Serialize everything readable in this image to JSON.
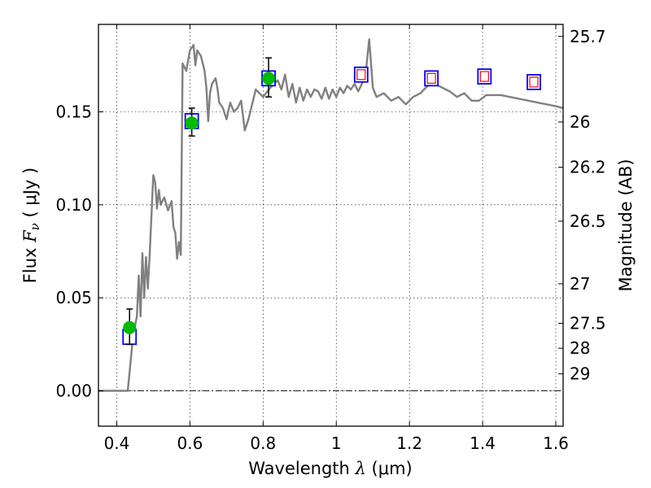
{
  "chart_data": {
    "type": "scatter",
    "xlabel": {
      "prefix": "Wavelength  ",
      "var": "λ",
      "unit": "(μm)"
    },
    "ylabel": {
      "prefix": "Flux  ",
      "var": "F",
      "sub": "ν",
      "unit": "( μJy )"
    },
    "y2label": "Magnitude (AB)",
    "xlim": [
      0.35,
      1.62
    ],
    "ylim": [
      -0.019,
      0.197
    ],
    "grid": true,
    "x_ticks": [
      {
        "value": 0.4,
        "label": "0.4"
      },
      {
        "value": 0.6,
        "label": "0.6"
      },
      {
        "value": 0.8,
        "label": "0.8"
      },
      {
        "value": 1.0,
        "label": "1"
      },
      {
        "value": 1.2,
        "label": "1.2"
      },
      {
        "value": 1.4,
        "label": "1.4"
      },
      {
        "value": 1.6,
        "label": "1.6"
      }
    ],
    "y_ticks": [
      {
        "value": 0.0,
        "label": "0.00"
      },
      {
        "value": 0.05,
        "label": "0.05"
      },
      {
        "value": 0.1,
        "label": "0.10"
      },
      {
        "value": 0.15,
        "label": "0.15"
      }
    ],
    "y2_ticks": [
      {
        "mag": 25.7,
        "label": "25.7"
      },
      {
        "mag": 26.0,
        "label": "26"
      },
      {
        "mag": 26.2,
        "label": "26.2"
      },
      {
        "mag": 26.5,
        "label": "26.5"
      },
      {
        "mag": 27.0,
        "label": "27"
      },
      {
        "mag": 27.5,
        "label": "27.5"
      },
      {
        "mag": 28.0,
        "label": "28"
      },
      {
        "mag": 29.0,
        "label": "29"
      }
    ],
    "series": [
      {
        "kind": "line",
        "color": "#808080",
        "points": [
          [
            0.35,
            0.0
          ],
          [
            0.43,
            0.0
          ],
          [
            0.445,
            0.03
          ],
          [
            0.455,
            0.04
          ],
          [
            0.46,
            0.062
          ],
          [
            0.465,
            0.04
          ],
          [
            0.47,
            0.074
          ],
          [
            0.475,
            0.05
          ],
          [
            0.48,
            0.072
          ],
          [
            0.485,
            0.055
          ],
          [
            0.49,
            0.073
          ],
          [
            0.495,
            0.095
          ],
          [
            0.5,
            0.116
          ],
          [
            0.505,
            0.112
          ],
          [
            0.51,
            0.098
          ],
          [
            0.515,
            0.108
          ],
          [
            0.52,
            0.1
          ],
          [
            0.53,
            0.104
          ],
          [
            0.54,
            0.097
          ],
          [
            0.55,
            0.102
          ],
          [
            0.555,
            0.088
          ],
          [
            0.56,
            0.085
          ],
          [
            0.565,
            0.071
          ],
          [
            0.57,
            0.08
          ],
          [
            0.575,
            0.073
          ],
          [
            0.58,
            0.176
          ],
          [
            0.59,
            0.172
          ],
          [
            0.6,
            0.183
          ],
          [
            0.61,
            0.186
          ],
          [
            0.615,
            0.175
          ],
          [
            0.62,
            0.183
          ],
          [
            0.63,
            0.18
          ],
          [
            0.64,
            0.172
          ],
          [
            0.645,
            0.163
          ],
          [
            0.65,
            0.145
          ],
          [
            0.655,
            0.16
          ],
          [
            0.66,
            0.165
          ],
          [
            0.67,
            0.168
          ],
          [
            0.675,
            0.163
          ],
          [
            0.68,
            0.155
          ],
          [
            0.69,
            0.152
          ],
          [
            0.7,
            0.146
          ],
          [
            0.71,
            0.155
          ],
          [
            0.72,
            0.15
          ],
          [
            0.73,
            0.152
          ],
          [
            0.74,
            0.156
          ],
          [
            0.75,
            0.14
          ],
          [
            0.76,
            0.146
          ],
          [
            0.78,
            0.162
          ],
          [
            0.8,
            0.158
          ],
          [
            0.82,
            0.163
          ],
          [
            0.84,
            0.167
          ],
          [
            0.85,
            0.162
          ],
          [
            0.86,
            0.17
          ],
          [
            0.87,
            0.158
          ],
          [
            0.88,
            0.165
          ],
          [
            0.89,
            0.155
          ],
          [
            0.9,
            0.163
          ],
          [
            0.91,
            0.156
          ],
          [
            0.92,
            0.162
          ],
          [
            0.93,
            0.158
          ],
          [
            0.94,
            0.162
          ],
          [
            0.95,
            0.161
          ],
          [
            0.96,
            0.157
          ],
          [
            0.97,
            0.163
          ],
          [
            0.98,
            0.157
          ],
          [
            0.99,
            0.162
          ],
          [
            1.0,
            0.158
          ],
          [
            1.01,
            0.163
          ],
          [
            1.02,
            0.16
          ],
          [
            1.03,
            0.164
          ],
          [
            1.04,
            0.162
          ],
          [
            1.05,
            0.165
          ],
          [
            1.06,
            0.161
          ],
          [
            1.07,
            0.165
          ],
          [
            1.08,
            0.17
          ],
          [
            1.09,
            0.189
          ],
          [
            1.1,
            0.163
          ],
          [
            1.11,
            0.158
          ],
          [
            1.13,
            0.16
          ],
          [
            1.15,
            0.156
          ],
          [
            1.17,
            0.158
          ],
          [
            1.19,
            0.154
          ],
          [
            1.21,
            0.158
          ],
          [
            1.23,
            0.16
          ],
          [
            1.25,
            0.164
          ],
          [
            1.27,
            0.165
          ],
          [
            1.29,
            0.163
          ],
          [
            1.31,
            0.161
          ],
          [
            1.33,
            0.158
          ],
          [
            1.35,
            0.16
          ],
          [
            1.37,
            0.156
          ],
          [
            1.39,
            0.156
          ],
          [
            1.41,
            0.159
          ],
          [
            1.45,
            0.159
          ],
          [
            1.5,
            0.157
          ],
          [
            1.55,
            0.155
          ],
          [
            1.6,
            0.153
          ],
          [
            1.62,
            0.152
          ]
        ]
      },
      {
        "kind": "square",
        "edgecolor": "#0000ff",
        "fill": "#ffffff",
        "points": [
          [
            0.435,
            0.029
          ],
          [
            0.605,
            0.145
          ],
          [
            0.815,
            0.168
          ]
        ]
      },
      {
        "kind": "square",
        "edgecolor": "#0000ff",
        "fill": "#ffffff",
        "inner_edgecolor": "#ff0000",
        "points": [
          [
            1.068,
            0.17
          ],
          [
            1.26,
            0.168
          ],
          [
            1.405,
            0.169
          ],
          [
            1.54,
            0.166
          ]
        ]
      },
      {
        "kind": "errorbar-circle",
        "color": "#00bb00",
        "errcolor": "#000000",
        "points": [
          {
            "x": 0.435,
            "y": 0.034,
            "ylo": 0.025,
            "yhi": 0.044
          },
          {
            "x": 0.605,
            "y": 0.144,
            "ylo": 0.137,
            "yhi": 0.152
          },
          {
            "x": 0.815,
            "y": 0.168,
            "ylo": 0.158,
            "yhi": 0.179
          }
        ]
      }
    ]
  }
}
